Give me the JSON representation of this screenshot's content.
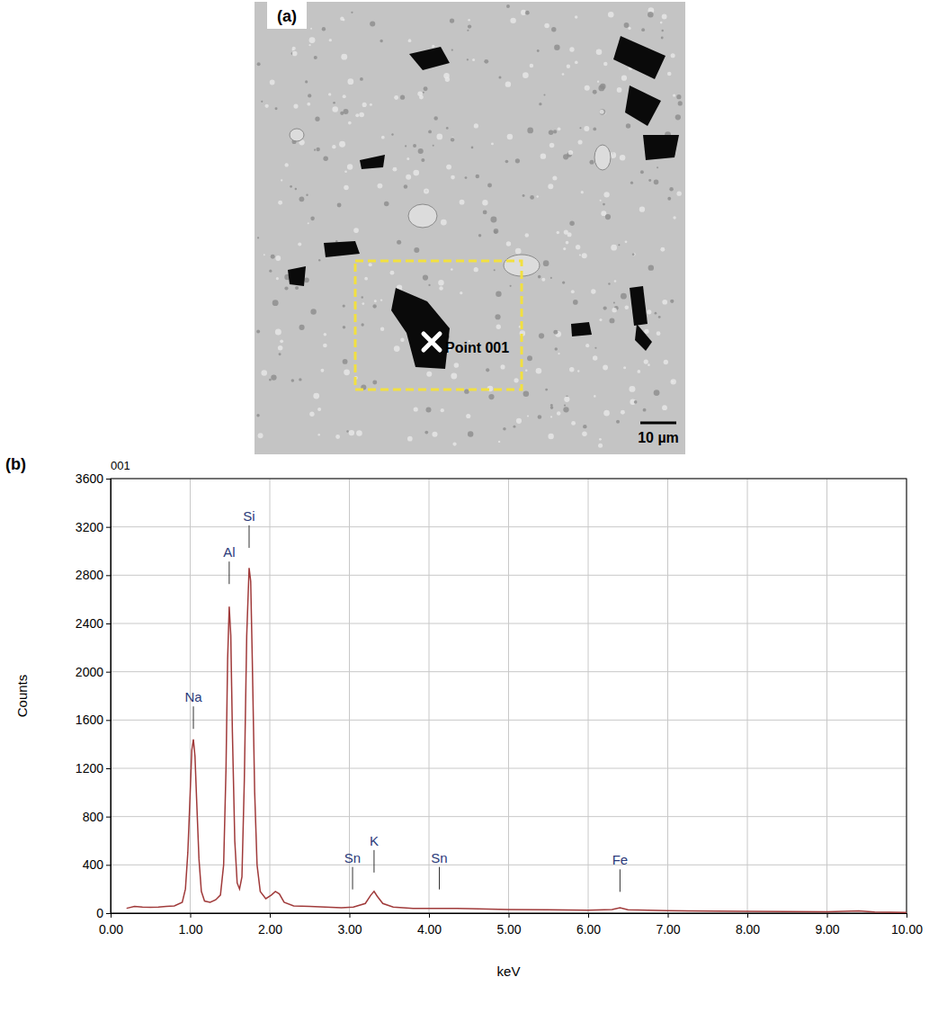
{
  "panel_a": {
    "label": "(a)",
    "point_label": "Point 001",
    "scale_bar": "10 µm"
  },
  "panel_b": {
    "label": "(b)"
  },
  "chart_data": {
    "type": "line",
    "title": "001",
    "x_label": "keV",
    "y_label": "Counts",
    "x": [
      0.2,
      0.3,
      0.4,
      0.5,
      0.6,
      0.7,
      0.8,
      0.9,
      0.94,
      0.97,
      1.0,
      1.02,
      1.04,
      1.06,
      1.08,
      1.11,
      1.14,
      1.18,
      1.25,
      1.32,
      1.38,
      1.42,
      1.45,
      1.47,
      1.49,
      1.51,
      1.53,
      1.56,
      1.59,
      1.62,
      1.65,
      1.68,
      1.71,
      1.74,
      1.76,
      1.78,
      1.81,
      1.84,
      1.88,
      1.95,
      2.02,
      2.07,
      2.12,
      2.18,
      2.3,
      2.5,
      2.7,
      2.9,
      3.05,
      3.2,
      3.27,
      3.31,
      3.35,
      3.42,
      3.55,
      3.8,
      4.1,
      4.5,
      5.0,
      5.5,
      6.0,
      6.3,
      6.4,
      6.5,
      7.0,
      8.0,
      9.0,
      9.4,
      9.6,
      10.0
    ],
    "series": [
      {
        "color": "#a03a3a",
        "values": [
          40,
          55,
          50,
          48,
          50,
          55,
          60,
          90,
          200,
          500,
          1000,
          1350,
          1440,
          1300,
          950,
          450,
          180,
          100,
          90,
          110,
          150,
          400,
          1200,
          2100,
          2540,
          2300,
          1500,
          600,
          250,
          200,
          300,
          1100,
          2300,
          2860,
          2750,
          2100,
          1000,
          400,
          180,
          120,
          150,
          180,
          160,
          90,
          60,
          55,
          50,
          45,
          50,
          80,
          150,
          180,
          140,
          80,
          50,
          40,
          40,
          38,
          30,
          28,
          25,
          30,
          45,
          28,
          20,
          15,
          12,
          18,
          10,
          5
        ]
      }
    ],
    "xlim": [
      0,
      10
    ],
    "ylim": [
      0,
      3600
    ],
    "xticks": [
      {
        "value": 0,
        "label": "0.00"
      },
      {
        "value": 1,
        "label": "1.00"
      },
      {
        "value": 2,
        "label": "2.00"
      },
      {
        "value": 3,
        "label": "3.00"
      },
      {
        "value": 4,
        "label": "4.00"
      },
      {
        "value": 5,
        "label": "5.00"
      },
      {
        "value": 6,
        "label": "6.00"
      },
      {
        "value": 7,
        "label": "7.00"
      },
      {
        "value": 8,
        "label": "8.00"
      },
      {
        "value": 9,
        "label": "9.00"
      },
      {
        "value": 10,
        "label": "10.00"
      }
    ],
    "yticks": [
      0,
      400,
      800,
      1200,
      1600,
      2000,
      2400,
      2800,
      3200,
      3600
    ],
    "grid": true,
    "annotations": [
      {
        "text": "Na",
        "x": 1.04,
        "y": 1750
      },
      {
        "text": "Al",
        "x": 1.49,
        "y": 2950
      },
      {
        "text": "Si",
        "x": 1.74,
        "y": 3250
      },
      {
        "text": "Sn",
        "x": 3.04,
        "y": 420
      },
      {
        "text": "K",
        "x": 3.31,
        "y": 560
      },
      {
        "text": "Sn",
        "x": 4.13,
        "y": 420
      },
      {
        "text": "Fe",
        "x": 6.4,
        "y": 400
      }
    ]
  }
}
